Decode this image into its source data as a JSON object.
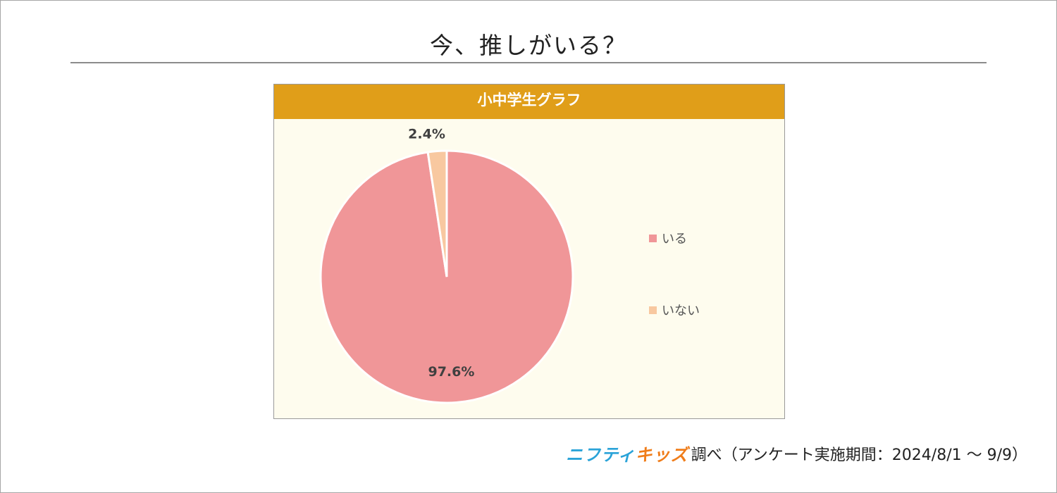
{
  "page": {
    "title": "今、推しがいる？"
  },
  "chart_data": {
    "type": "pie",
    "title": "小中学生グラフ",
    "slices": [
      {
        "label": "いる",
        "value": 97.6,
        "data_label": "97.6%",
        "color": "#f09698"
      },
      {
        "label": "いない",
        "value": 2.4,
        "data_label": "2.4%",
        "color": "#f8c8a0"
      }
    ],
    "legend_position": "right",
    "start_angle_deg": 0,
    "direction": "clockwise",
    "slice_border_color": "#ffffff",
    "label_color": "#404040"
  },
  "footer": {
    "brand_part1": "ニフティ",
    "brand_part2": "キッズ",
    "text": "調べ（アンケート実施期間：2024/8/1 ～ 9/9）"
  }
}
